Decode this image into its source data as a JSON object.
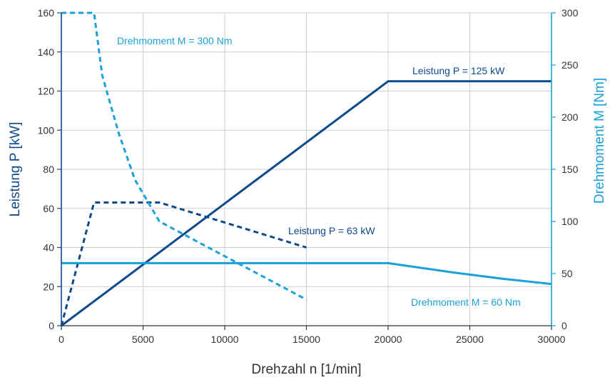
{
  "colors": {
    "dark": "#0d4a8b",
    "light": "#1aa1d9",
    "grid": "#cfcfcf",
    "text": "#333333"
  },
  "chart_data": {
    "type": "line",
    "xlabel": "Drehzahl n [1/min]",
    "ylabel_left": "Leistung P [kW]",
    "ylabel_right": "Drehmoment M [Nm]",
    "xlim": [
      0,
      30000
    ],
    "ylim_left": [
      0,
      160
    ],
    "ylim_right": [
      0,
      300
    ],
    "x_ticks": [
      "0",
      "5000",
      "10000",
      "15000",
      "20000",
      "25000",
      "30000"
    ],
    "y_ticks_left": [
      "0",
      "20",
      "40",
      "60",
      "80",
      "100",
      "120",
      "140",
      "160"
    ],
    "y_ticks_right": [
      "0",
      "50",
      "100",
      "150",
      "200",
      "250",
      "300"
    ],
    "grid": true,
    "series": [
      {
        "name": "Leistung P = 125 kW",
        "axis": "left",
        "color": "dark",
        "dashed": false,
        "points": [
          [
            0,
            0
          ],
          [
            20000,
            125
          ],
          [
            30000,
            125
          ]
        ]
      },
      {
        "name": "Leistung P = 63 kW",
        "axis": "left",
        "color": "dark",
        "dashed": true,
        "points": [
          [
            0,
            0
          ],
          [
            2000,
            63
          ],
          [
            6000,
            63
          ],
          [
            15000,
            40
          ]
        ]
      },
      {
        "name": "Drehmoment M = 300 Nm",
        "axis": "right",
        "color": "light",
        "dashed": true,
        "points": [
          [
            0,
            300
          ],
          [
            2000,
            300
          ],
          [
            2500,
            240
          ],
          [
            3500,
            185
          ],
          [
            4500,
            140
          ],
          [
            6000,
            100
          ],
          [
            15000,
            25
          ]
        ]
      },
      {
        "name": "Drehmoment M = 60 Nm",
        "axis": "right",
        "color": "light",
        "dashed": false,
        "points": [
          [
            0,
            60
          ],
          [
            20000,
            60
          ],
          [
            24000,
            51
          ],
          [
            27000,
            45
          ],
          [
            30000,
            40
          ]
        ]
      }
    ],
    "annotations": [
      {
        "text": "Drehmoment M = 300 Nm",
        "color": "light"
      },
      {
        "text": "Leistung P = 125 kW",
        "color": "dark"
      },
      {
        "text": "Leistung P = 63 kW",
        "color": "dark"
      },
      {
        "text": "Drehmoment M = 60 Nm",
        "color": "light"
      }
    ]
  }
}
